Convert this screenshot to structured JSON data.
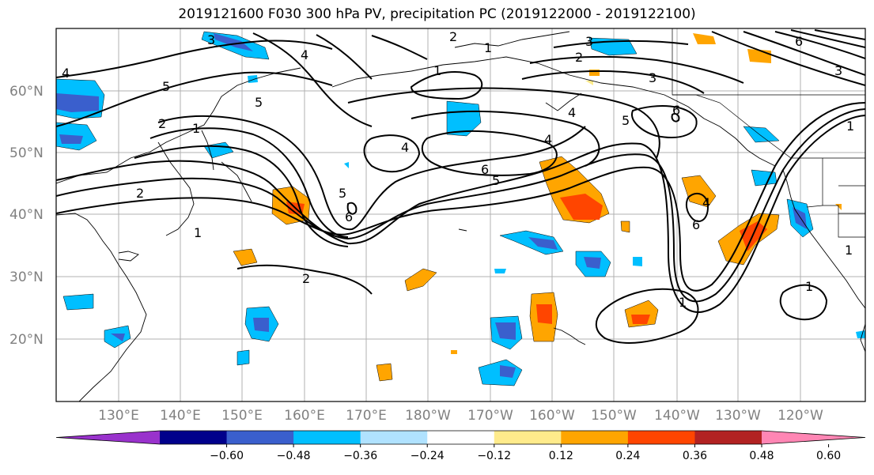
{
  "title": "2019121600 F030 300 hPa PV, precipitation PC (2019122000 - 2019122100)",
  "lat_labels": [
    "60°N",
    "50°N",
    "40°N",
    "30°N",
    "20°N"
  ],
  "lon_labels": [
    "130°E",
    "140°E",
    "150°E",
    "160°E",
    "170°E",
    "180°W",
    "170°W",
    "160°W",
    "150°W",
    "140°W",
    "130°W",
    "120°W"
  ],
  "contour_labels": {
    "c1": "1",
    "c2": "2",
    "c3": "3",
    "c4": "4",
    "c5": "5",
    "c6": "6"
  },
  "colorbar": {
    "colors": [
      "#9932cc",
      "#00008b",
      "#3a5fcd",
      "#00bfff",
      "#b0e2ff",
      "#ffffff",
      "#ffeb8b",
      "#ffa500",
      "#ff4500",
      "#b22222",
      "#ff86b4"
    ],
    "ticks": [
      "−0.60",
      "−0.48",
      "−0.36",
      "−0.24",
      "−0.12",
      "0.12",
      "0.24",
      "0.36",
      "0.48",
      "0.60"
    ]
  }
}
